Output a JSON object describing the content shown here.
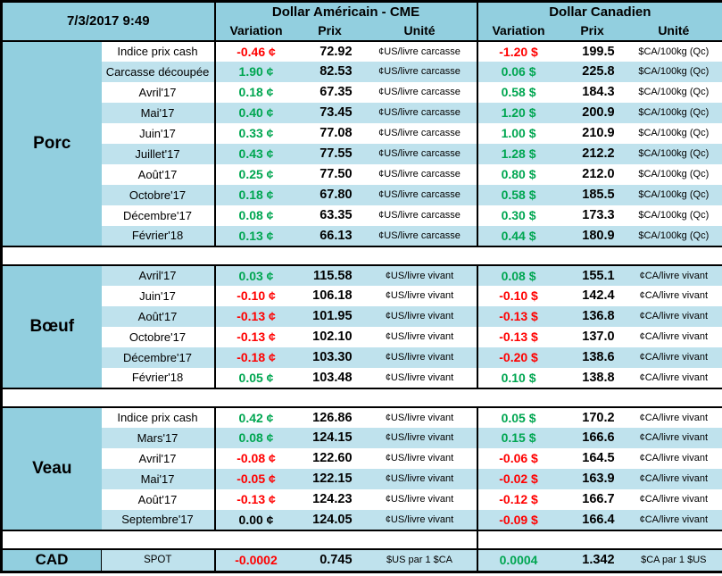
{
  "titlebar": {
    "timestamp": "7/3/2017 9:49"
  },
  "headers": {
    "us": {
      "title": "Dollar Américain - CME",
      "variation": "Variation",
      "prix": "Prix",
      "unite": "Unité"
    },
    "ca": {
      "title": "Dollar Canadien",
      "variation": "Variation",
      "prix": "Prix",
      "unite": "Unité"
    }
  },
  "colors": {
    "positive": "#00A651",
    "negative": "#FF0000",
    "header-blue": "#92CFDF",
    "stripe-blue": "#BFE2ED"
  },
  "sections": [
    {
      "id": "porc",
      "name": "Porc",
      "first_row_shade": "white",
      "rows": [
        {
          "label": "Indice prix cash",
          "us": {
            "var": "-0.46 ¢",
            "dir": "neg",
            "prix": "72.92",
            "unit": "¢US/livre carcasse"
          },
          "ca": {
            "var": "-1.20 $",
            "dir": "neg",
            "prix": "199.5",
            "unit": "$CA/100kg (Qc)"
          }
        },
        {
          "label": "Carcasse découpée",
          "us": {
            "var": "1.90 ¢",
            "dir": "pos",
            "prix": "82.53",
            "unit": "¢US/livre carcasse"
          },
          "ca": {
            "var": "0.06 $",
            "dir": "pos",
            "prix": "225.8",
            "unit": "$CA/100kg (Qc)"
          }
        },
        {
          "label": "Avril'17",
          "us": {
            "var": "0.18 ¢",
            "dir": "pos",
            "prix": "67.35",
            "unit": "¢US/livre carcasse"
          },
          "ca": {
            "var": "0.58 $",
            "dir": "pos",
            "prix": "184.3",
            "unit": "$CA/100kg (Qc)"
          }
        },
        {
          "label": "Mai'17",
          "us": {
            "var": "0.40 ¢",
            "dir": "pos",
            "prix": "73.45",
            "unit": "¢US/livre carcasse"
          },
          "ca": {
            "var": "1.20 $",
            "dir": "pos",
            "prix": "200.9",
            "unit": "$CA/100kg (Qc)"
          }
        },
        {
          "label": "Juin'17",
          "us": {
            "var": "0.33 ¢",
            "dir": "pos",
            "prix": "77.08",
            "unit": "¢US/livre carcasse"
          },
          "ca": {
            "var": "1.00 $",
            "dir": "pos",
            "prix": "210.9",
            "unit": "$CA/100kg (Qc)"
          }
        },
        {
          "label": "Juillet'17",
          "us": {
            "var": "0.43 ¢",
            "dir": "pos",
            "prix": "77.55",
            "unit": "¢US/livre carcasse"
          },
          "ca": {
            "var": "1.28 $",
            "dir": "pos",
            "prix": "212.2",
            "unit": "$CA/100kg (Qc)"
          }
        },
        {
          "label": "Août'17",
          "us": {
            "var": "0.25 ¢",
            "dir": "pos",
            "prix": "77.50",
            "unit": "¢US/livre carcasse"
          },
          "ca": {
            "var": "0.80 $",
            "dir": "pos",
            "prix": "212.0",
            "unit": "$CA/100kg (Qc)"
          }
        },
        {
          "label": "Octobre'17",
          "us": {
            "var": "0.18 ¢",
            "dir": "pos",
            "prix": "67.80",
            "unit": "¢US/livre carcasse"
          },
          "ca": {
            "var": "0.58 $",
            "dir": "pos",
            "prix": "185.5",
            "unit": "$CA/100kg (Qc)"
          }
        },
        {
          "label": "Décembre'17",
          "us": {
            "var": "0.08 ¢",
            "dir": "pos",
            "prix": "63.35",
            "unit": "¢US/livre carcasse"
          },
          "ca": {
            "var": "0.30 $",
            "dir": "pos",
            "prix": "173.3",
            "unit": "$CA/100kg (Qc)"
          }
        },
        {
          "label": "Février'18",
          "us": {
            "var": "0.13 ¢",
            "dir": "pos",
            "prix": "66.13",
            "unit": "¢US/livre carcasse"
          },
          "ca": {
            "var": "0.44 $",
            "dir": "pos",
            "prix": "180.9",
            "unit": "$CA/100kg (Qc)"
          }
        }
      ]
    },
    {
      "id": "boeuf",
      "name": "Bœuf",
      "first_row_shade": "blue",
      "rows": [
        {
          "label": "Avril'17",
          "us": {
            "var": "0.03 ¢",
            "dir": "pos",
            "prix": "115.58",
            "unit": "¢US/livre vivant"
          },
          "ca": {
            "var": "0.08 $",
            "dir": "pos",
            "prix": "155.1",
            "unit": "¢CA/livre vivant"
          }
        },
        {
          "label": "Juin'17",
          "us": {
            "var": "-0.10 ¢",
            "dir": "neg",
            "prix": "106.18",
            "unit": "¢US/livre vivant"
          },
          "ca": {
            "var": "-0.10 $",
            "dir": "neg",
            "prix": "142.4",
            "unit": "¢CA/livre vivant"
          }
        },
        {
          "label": "Août'17",
          "us": {
            "var": "-0.13 ¢",
            "dir": "neg",
            "prix": "101.95",
            "unit": "¢US/livre vivant"
          },
          "ca": {
            "var": "-0.13 $",
            "dir": "neg",
            "prix": "136.8",
            "unit": "¢CA/livre vivant"
          }
        },
        {
          "label": "Octobre'17",
          "us": {
            "var": "-0.13 ¢",
            "dir": "neg",
            "prix": "102.10",
            "unit": "¢US/livre vivant"
          },
          "ca": {
            "var": "-0.13 $",
            "dir": "neg",
            "prix": "137.0",
            "unit": "¢CA/livre vivant"
          }
        },
        {
          "label": "Décembre'17",
          "us": {
            "var": "-0.18 ¢",
            "dir": "neg",
            "prix": "103.30",
            "unit": "¢US/livre vivant"
          },
          "ca": {
            "var": "-0.20 $",
            "dir": "neg",
            "prix": "138.6",
            "unit": "¢CA/livre vivant"
          }
        },
        {
          "label": "Février'18",
          "us": {
            "var": "0.05 ¢",
            "dir": "pos",
            "prix": "103.48",
            "unit": "¢US/livre vivant"
          },
          "ca": {
            "var": "0.10 $",
            "dir": "pos",
            "prix": "138.8",
            "unit": "¢CA/livre vivant"
          }
        }
      ]
    },
    {
      "id": "veau",
      "name": "Veau",
      "first_row_shade": "white",
      "rows": [
        {
          "label": "Indice prix cash",
          "us": {
            "var": "0.42 ¢",
            "dir": "pos",
            "prix": "126.86",
            "unit": "¢US/livre vivant"
          },
          "ca": {
            "var": "0.05 $",
            "dir": "pos",
            "prix": "170.2",
            "unit": "¢CA/livre vivant"
          }
        },
        {
          "label": "Mars'17",
          "us": {
            "var": "0.08 ¢",
            "dir": "pos",
            "prix": "124.15",
            "unit": "¢US/livre vivant"
          },
          "ca": {
            "var": "0.15 $",
            "dir": "pos",
            "prix": "166.6",
            "unit": "¢CA/livre vivant"
          }
        },
        {
          "label": "Avril'17",
          "us": {
            "var": "-0.08 ¢",
            "dir": "neg",
            "prix": "122.60",
            "unit": "¢US/livre vivant"
          },
          "ca": {
            "var": "-0.06 $",
            "dir": "neg",
            "prix": "164.5",
            "unit": "¢CA/livre vivant"
          }
        },
        {
          "label": "Mai'17",
          "us": {
            "var": "-0.05 ¢",
            "dir": "neg",
            "prix": "122.15",
            "unit": "¢US/livre vivant"
          },
          "ca": {
            "var": "-0.02 $",
            "dir": "neg",
            "prix": "163.9",
            "unit": "¢CA/livre vivant"
          }
        },
        {
          "label": "Août'17",
          "us": {
            "var": "-0.13 ¢",
            "dir": "neg",
            "prix": "124.23",
            "unit": "¢US/livre vivant"
          },
          "ca": {
            "var": "-0.12 $",
            "dir": "neg",
            "prix": "166.7",
            "unit": "¢CA/livre vivant"
          }
        },
        {
          "label": "Septembre'17",
          "us": {
            "var": "0.00 ¢",
            "dir": "neu",
            "prix": "124.05",
            "unit": "¢US/livre vivant"
          },
          "ca": {
            "var": "-0.09 $",
            "dir": "neg",
            "prix": "166.4",
            "unit": "¢CA/livre vivant"
          }
        }
      ]
    }
  ],
  "cad": {
    "name": "CAD",
    "label": "SPOT",
    "us": {
      "var": "-0.0002",
      "dir": "neg",
      "prix": "0.745",
      "unit": "$US par 1 $CA"
    },
    "ca": {
      "var": "0.0004",
      "dir": "pos",
      "prix": "1.342",
      "unit": "$CA par 1 $US"
    }
  }
}
